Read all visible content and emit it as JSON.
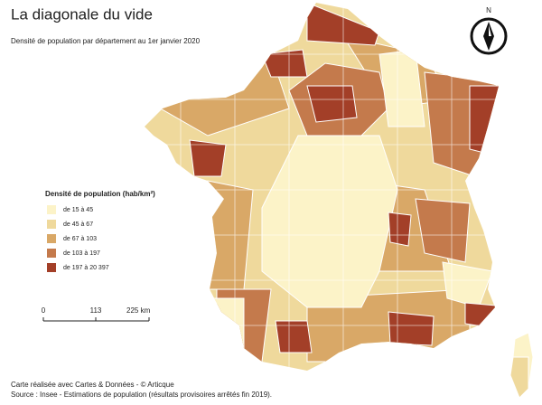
{
  "title": "La diagonale du vide",
  "subtitle": "Densité de population par département au 1er janvier 2020",
  "legend": {
    "title": "Densité de population (hab/km²)",
    "items": [
      {
        "label": "de 15 à 45",
        "color": "#fcf3c8"
      },
      {
        "label": "de 45 à 67",
        "color": "#efd99c"
      },
      {
        "label": "de 67 à 103",
        "color": "#d9a867"
      },
      {
        "label": "de 103 à 197",
        "color": "#c47a4c"
      },
      {
        "label": "de 197 à 20 397",
        "color": "#a33f28"
      }
    ]
  },
  "scale": {
    "labels": [
      "0",
      "113",
      "225 km"
    ]
  },
  "north": "N",
  "credits": [
    "Carte réalisée avec Cartes & Données - © Articque",
    "Source : Insee - Estimations de population (résultats provisoires arrêtés fin 2019)."
  ]
}
